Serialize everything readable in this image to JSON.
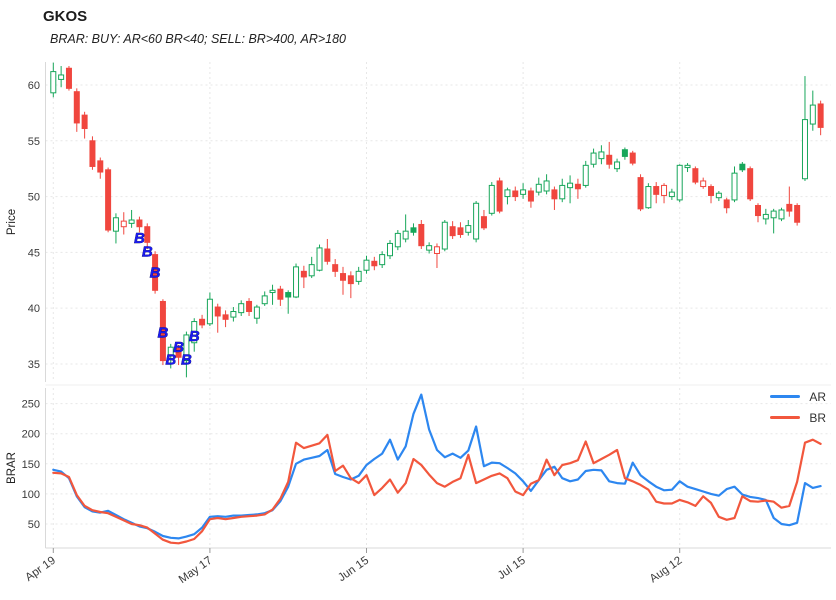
{
  "title": "GKOS",
  "subtitle": "BRAR: BUY: AR<60 BR<40; SELL: BR>400, AR>180",
  "colors": {
    "up": "#17a65a",
    "down": "#f0463e",
    "ar_line": "#2d87f0",
    "br_line": "#f2573d",
    "buy_marker": "#1a1aee",
    "grid": "#e7e7e7",
    "axis": "#d9d9d9",
    "text": "#3b3b3b"
  },
  "legend": {
    "items": [
      {
        "label": "AR"
      },
      {
        "label": "BR"
      }
    ]
  },
  "chart_data": [
    {
      "type": "candlestick",
      "title": "GKOS",
      "ylabel": "Price",
      "yticks": [
        35,
        40,
        45,
        50,
        55,
        60
      ],
      "ylim": [
        33.7,
        62.3
      ],
      "grid": true,
      "x_tick_indices": [
        0,
        20,
        40,
        60,
        80
      ],
      "x_ticklabels": [
        "Apr 19",
        "May 17",
        "Jun 15",
        "Jul 15",
        "Aug 12"
      ],
      "marker_label": "B",
      "buy_markers": [
        [
          11,
          46.3
        ],
        [
          12,
          45.1
        ],
        [
          13,
          43.2
        ],
        [
          14,
          37.8
        ],
        [
          15,
          35.4
        ],
        [
          16,
          36.5
        ],
        [
          17,
          35.4
        ],
        [
          18,
          37.5
        ]
      ],
      "solid_green_bars": [
        30,
        46,
        73,
        88
      ],
      "hollow_red_bars": [
        9,
        49,
        78,
        83
      ],
      "candles_ohlc": [
        [
          59.3,
          62.0,
          58.9,
          61.2
        ],
        [
          60.5,
          61.7,
          59.8,
          60.9
        ],
        [
          61.5,
          61.7,
          59.5,
          59.7
        ],
        [
          59.4,
          59.7,
          55.8,
          56.6
        ],
        [
          57.3,
          57.6,
          55.2,
          56.1
        ],
        [
          55.0,
          55.4,
          52.4,
          52.7
        ],
        [
          53.2,
          53.5,
          51.6,
          52.2
        ],
        [
          52.4,
          52.6,
          46.8,
          47.0
        ],
        [
          46.9,
          48.5,
          45.8,
          48.1
        ],
        [
          47.8,
          48.6,
          46.6,
          47.3
        ],
        [
          47.6,
          48.8,
          47.2,
          47.9
        ],
        [
          47.9,
          48.2,
          46.8,
          47.3
        ],
        [
          47.3,
          47.6,
          45.3,
          45.9
        ],
        [
          44.8,
          45.1,
          41.3,
          41.6
        ],
        [
          40.6,
          40.8,
          34.9,
          35.3
        ],
        [
          35.8,
          36.8,
          34.6,
          36.5
        ],
        [
          36.4,
          36.7,
          34.9,
          35.6
        ],
        [
          35.3,
          37.9,
          33.8,
          37.6
        ],
        [
          36.9,
          39.1,
          36.1,
          38.8
        ],
        [
          39.0,
          39.4,
          38.2,
          38.5
        ],
        [
          38.6,
          41.4,
          38.4,
          40.8
        ],
        [
          40.1,
          40.4,
          37.8,
          39.3
        ],
        [
          39.4,
          39.8,
          38.3,
          39.0
        ],
        [
          39.2,
          40.1,
          38.8,
          39.7
        ],
        [
          39.6,
          40.7,
          39.3,
          40.4
        ],
        [
          40.6,
          40.9,
          39.3,
          39.7
        ],
        [
          39.1,
          40.3,
          38.6,
          40.1
        ],
        [
          40.4,
          41.5,
          40.2,
          41.1
        ],
        [
          41.4,
          42.1,
          40.3,
          41.6
        ],
        [
          41.7,
          42.0,
          40.2,
          40.8
        ],
        [
          41.0,
          41.6,
          39.5,
          41.4
        ],
        [
          41.0,
          44.0,
          40.9,
          43.7
        ],
        [
          43.3,
          43.8,
          41.8,
          42.8
        ],
        [
          42.9,
          44.6,
          42.7,
          43.9
        ],
        [
          43.4,
          45.7,
          43.3,
          45.4
        ],
        [
          45.3,
          46.2,
          43.9,
          44.2
        ],
        [
          43.9,
          44.4,
          42.8,
          43.3
        ],
        [
          43.1,
          43.7,
          41.2,
          42.5
        ],
        [
          42.9,
          43.3,
          40.9,
          42.2
        ],
        [
          42.4,
          43.7,
          42.1,
          43.3
        ],
        [
          43.4,
          44.7,
          43.1,
          44.3
        ],
        [
          44.2,
          44.6,
          43.4,
          43.8
        ],
        [
          43.9,
          45.1,
          43.6,
          44.8
        ],
        [
          44.7,
          46.1,
          44.4,
          45.8
        ],
        [
          45.5,
          47.0,
          45.2,
          46.7
        ],
        [
          46.2,
          48.4,
          45.9,
          46.9
        ],
        [
          46.8,
          47.6,
          46.5,
          47.2
        ],
        [
          47.5,
          47.9,
          45.3,
          45.6
        ],
        [
          45.2,
          45.9,
          44.9,
          45.6
        ],
        [
          45.5,
          45.8,
          43.6,
          44.9
        ],
        [
          45.3,
          47.9,
          45.1,
          47.7
        ],
        [
          47.3,
          47.8,
          46.2,
          46.5
        ],
        [
          47.2,
          47.7,
          46.3,
          46.6
        ],
        [
          46.8,
          47.9,
          46.5,
          47.4
        ],
        [
          46.2,
          49.6,
          45.9,
          49.4
        ],
        [
          48.2,
          48.8,
          47.0,
          47.2
        ],
        [
          48.5,
          51.3,
          48.3,
          51.0
        ],
        [
          51.4,
          51.7,
          48.5,
          48.7
        ],
        [
          50.0,
          50.8,
          49.3,
          50.6
        ],
        [
          50.5,
          50.9,
          49.6,
          50.0
        ],
        [
          50.2,
          51.2,
          49.8,
          50.6
        ],
        [
          50.5,
          50.8,
          49.0,
          49.6
        ],
        [
          50.4,
          51.7,
          50.1,
          51.1
        ],
        [
          50.5,
          52.0,
          50.2,
          51.4
        ],
        [
          50.6,
          50.9,
          48.8,
          49.8
        ],
        [
          49.8,
          51.6,
          49.5,
          51.0
        ],
        [
          50.8,
          51.9,
          49.4,
          51.2
        ],
        [
          51.1,
          51.6,
          49.8,
          50.7
        ],
        [
          51.0,
          53.2,
          50.8,
          52.8
        ],
        [
          52.9,
          54.3,
          52.6,
          53.9
        ],
        [
          53.4,
          54.6,
          52.9,
          54.0
        ],
        [
          53.7,
          54.9,
          52.5,
          52.9
        ],
        [
          52.5,
          53.4,
          52.2,
          53.1
        ],
        [
          53.6,
          54.4,
          53.3,
          54.2
        ],
        [
          53.9,
          54.1,
          52.8,
          53.0
        ],
        [
          51.7,
          52.0,
          48.7,
          48.9
        ],
        [
          49.0,
          51.2,
          48.9,
          50.9
        ],
        [
          50.9,
          51.3,
          49.4,
          50.2
        ],
        [
          51.0,
          51.2,
          49.4,
          50.1
        ],
        [
          50.0,
          50.7,
          49.7,
          50.4
        ],
        [
          49.7,
          52.9,
          49.5,
          52.8
        ],
        [
          52.6,
          53.0,
          52.2,
          52.8
        ],
        [
          52.5,
          52.7,
          51.1,
          51.3
        ],
        [
          51.4,
          51.7,
          50.7,
          50.9
        ],
        [
          50.9,
          51.1,
          49.4,
          50.1
        ],
        [
          49.9,
          50.5,
          49.6,
          50.3
        ],
        [
          49.7,
          49.9,
          48.5,
          49.0
        ],
        [
          49.7,
          52.7,
          49.5,
          52.1
        ],
        [
          52.4,
          53.1,
          52.2,
          52.9
        ],
        [
          52.5,
          52.7,
          49.6,
          49.8
        ],
        [
          49.2,
          49.4,
          47.7,
          48.3
        ],
        [
          48.0,
          48.9,
          47.5,
          48.4
        ],
        [
          48.1,
          48.9,
          46.7,
          48.7
        ],
        [
          48.0,
          49.0,
          47.8,
          48.8
        ],
        [
          49.3,
          50.9,
          48.2,
          48.7
        ],
        [
          49.2,
          49.4,
          47.4,
          47.7
        ],
        [
          51.6,
          60.8,
          51.4,
          56.9
        ],
        [
          56.5,
          59.5,
          55.9,
          58.2
        ],
        [
          58.3,
          58.6,
          55.5,
          56.2
        ]
      ]
    },
    {
      "type": "line",
      "ylabel": "BRAR",
      "yticks": [
        50,
        100,
        150,
        200,
        250
      ],
      "ylim": [
        15,
        277
      ],
      "grid": true,
      "legend_position": "top-right",
      "x_tick_indices": [
        0,
        20,
        40,
        60,
        80
      ],
      "x_ticklabels": [
        "Apr 19",
        "May 17",
        "Jun 15",
        "Jul 15",
        "Aug 12"
      ],
      "series": [
        {
          "name": "AR",
          "values": [
            140,
            137,
            126,
            96,
            78,
            71,
            69,
            72,
            65,
            58,
            52,
            46,
            43,
            37,
            30,
            27,
            26,
            29,
            33,
            44,
            62,
            63,
            62,
            64,
            64,
            65,
            66,
            68,
            73,
            88,
            112,
            150,
            157,
            160,
            163,
            173,
            133,
            128,
            124,
            130,
            148,
            158,
            167,
            190,
            157,
            179,
            233,
            265,
            207,
            173,
            161,
            167,
            160,
            172,
            212,
            146,
            152,
            151,
            143,
            134,
            121,
            105,
            123,
            140,
            145,
            126,
            121,
            124,
            138,
            140,
            139,
            121,
            118,
            117,
            152,
            131,
            121,
            112,
            106,
            107,
            121,
            112,
            108,
            104,
            100,
            97,
            108,
            112,
            99,
            95,
            93,
            90,
            60,
            50,
            48,
            52,
            118,
            110,
            113
          ]
        },
        {
          "name": "BR",
          "values": [
            135,
            134,
            128,
            98,
            80,
            73,
            70,
            68,
            62,
            56,
            50,
            48,
            44,
            34,
            24,
            19,
            18,
            21,
            25,
            38,
            58,
            60,
            58,
            60,
            62,
            63,
            64,
            66,
            74,
            92,
            120,
            185,
            176,
            180,
            184,
            198,
            138,
            147,
            126,
            118,
            131,
            98,
            110,
            124,
            102,
            118,
            158,
            148,
            132,
            118,
            112,
            120,
            126,
            165,
            118,
            124,
            130,
            134,
            126,
            104,
            98,
            117,
            123,
            157,
            131,
            148,
            151,
            156,
            187,
            151,
            158,
            165,
            173,
            126,
            121,
            115,
            107,
            87,
            84,
            84,
            90,
            86,
            80,
            96,
            85,
            62,
            57,
            60,
            96,
            88,
            87,
            89,
            87,
            77,
            80,
            120,
            185,
            190,
            183
          ]
        }
      ]
    }
  ]
}
